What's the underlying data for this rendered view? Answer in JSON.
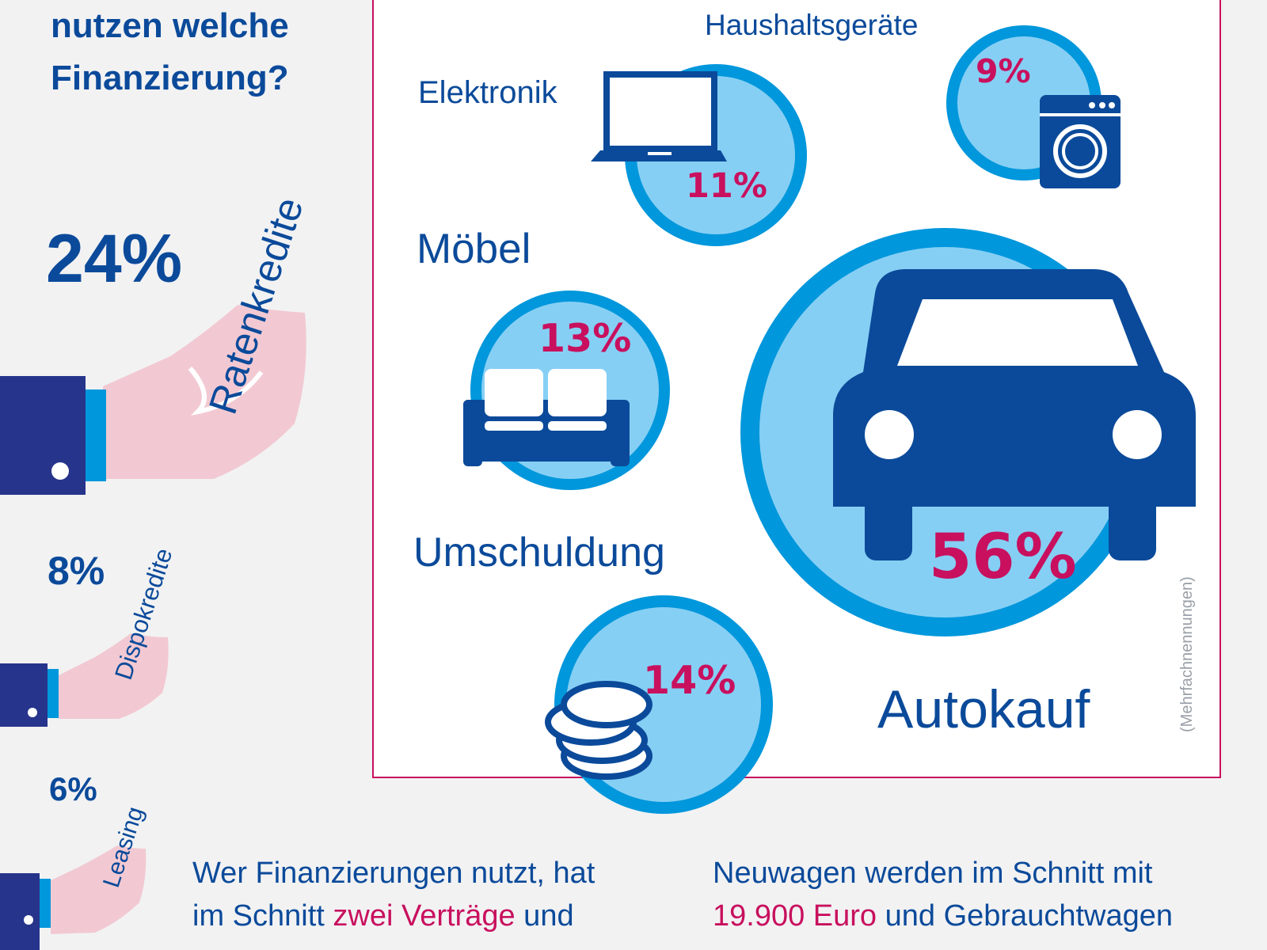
{
  "title": {
    "line1": "nutzen welche",
    "line2": "Finanzierung?"
  },
  "colors": {
    "navy": "#0b4a9a",
    "cyan": "#0097dc",
    "lightblue": "#86cff4",
    "magenta": "#c8105e",
    "skin": "#f2c9d2"
  },
  "financing_types": [
    {
      "label": "Ratenkredite",
      "percent": "24%"
    },
    {
      "label": "Dispokredite",
      "percent": "8%"
    },
    {
      "label": "Leasing",
      "percent": "6%"
    }
  ],
  "purposes": [
    {
      "label": "Haushaltsgeräte",
      "percent": "9%",
      "icon": "washing-machine-icon"
    },
    {
      "label": "Elektronik",
      "percent": "11%",
      "icon": "laptop-icon"
    },
    {
      "label": "Möbel",
      "percent": "13%",
      "icon": "sofa-icon"
    },
    {
      "label": "Umschuldung",
      "percent": "14%",
      "icon": "coins-icon"
    },
    {
      "label": "Autokauf",
      "percent": "56%",
      "icon": "car-icon"
    }
  ],
  "note": "(Mehrfachnennungen)",
  "footer": {
    "left": {
      "line1": "Wer Finanzierungen nutzt, hat",
      "line2_pre": "im Schnitt ",
      "line2_highlight": "zwei Verträge",
      "line2_post": " und"
    },
    "right": {
      "line1": "Neuwagen werden im Schnitt mit",
      "line2_highlight": "19.900 Euro",
      "line2_post": " und Gebrauchtwagen"
    }
  }
}
